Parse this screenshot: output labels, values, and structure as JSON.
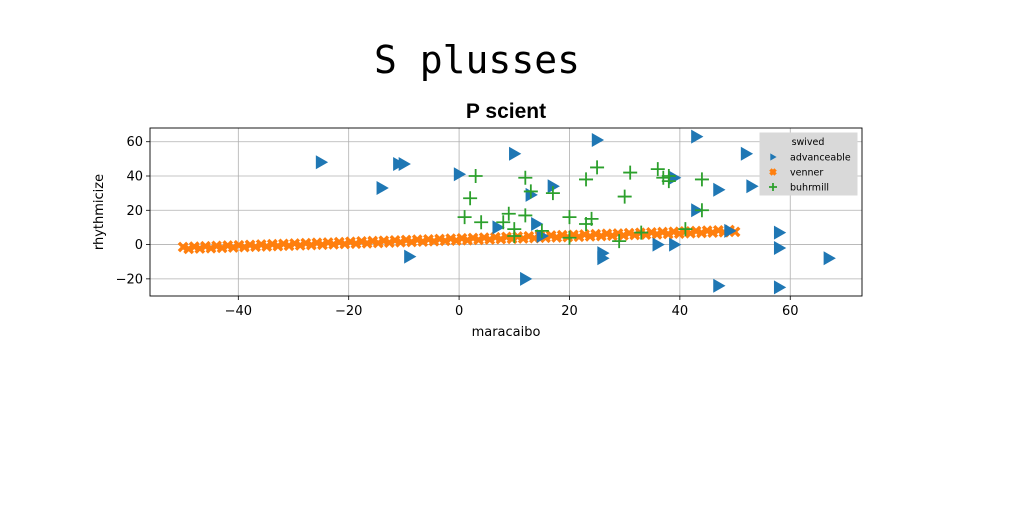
{
  "figure": {
    "suptitle": "S plusses"
  },
  "chart_data": {
    "type": "scatter",
    "title": "P scient",
    "xlabel": "maracaibo",
    "ylabel": "rhythmicize",
    "xlim": [
      -56,
      73
    ],
    "ylim": [
      -30,
      68
    ],
    "xticks": [
      -40,
      -20,
      0,
      20,
      40,
      60
    ],
    "yticks": [
      -20,
      0,
      20,
      40,
      60
    ],
    "xtick_labels": [
      "−40",
      "−20",
      "0",
      "20",
      "40",
      "60"
    ],
    "ytick_labels": [
      "−20",
      "0",
      "20",
      "40",
      "60"
    ],
    "grid": true,
    "legend": {
      "title": "swived",
      "placement": "upper right"
    },
    "series": [
      {
        "name": "advanceable",
        "marker": "triangle-right",
        "color": "#1f77b4",
        "points": [
          [
            -25,
            48
          ],
          [
            -11,
            47
          ],
          [
            -10,
            47
          ],
          [
            -14,
            33
          ],
          [
            -9,
            -7
          ],
          [
            0,
            41
          ],
          [
            10,
            53
          ],
          [
            12,
            -20
          ],
          [
            13,
            29
          ],
          [
            17,
            34
          ],
          [
            14,
            12
          ],
          [
            15,
            5
          ],
          [
            7,
            10
          ],
          [
            25,
            61
          ],
          [
            26,
            -5
          ],
          [
            26,
            -8
          ],
          [
            36,
            0
          ],
          [
            39,
            0
          ],
          [
            43,
            63
          ],
          [
            43,
            20
          ],
          [
            47,
            32
          ],
          [
            47,
            -24
          ],
          [
            39,
            39
          ],
          [
            52,
            53
          ],
          [
            53,
            34
          ],
          [
            58,
            7
          ],
          [
            58,
            -2
          ],
          [
            58,
            -25
          ],
          [
            67,
            -8
          ],
          [
            49,
            8
          ]
        ]
      },
      {
        "name": "venner",
        "marker": "x-filled",
        "color": "#ff7f0e",
        "trend": {
          "x_from": -50,
          "x_to": 50,
          "count": 100,
          "y_at_from": -2,
          "y_at_to": 8
        }
      },
      {
        "name": "buhrmill",
        "marker": "plus",
        "color": "#2ca02c",
        "points": [
          [
            2,
            27
          ],
          [
            3,
            40
          ],
          [
            1,
            16
          ],
          [
            4,
            13
          ],
          [
            8,
            13
          ],
          [
            9,
            18
          ],
          [
            10,
            5
          ],
          [
            12,
            39
          ],
          [
            12,
            17
          ],
          [
            13,
            31
          ],
          [
            15,
            8
          ],
          [
            17,
            30
          ],
          [
            20,
            16
          ],
          [
            20,
            4
          ],
          [
            23,
            38
          ],
          [
            23,
            12
          ],
          [
            24,
            15
          ],
          [
            25,
            45
          ],
          [
            29,
            2
          ],
          [
            30,
            28
          ],
          [
            31,
            42
          ],
          [
            33,
            7
          ],
          [
            36,
            44
          ],
          [
            37,
            39
          ],
          [
            38,
            37
          ],
          [
            38,
            40
          ],
          [
            41,
            9
          ],
          [
            44,
            38
          ],
          [
            44,
            20
          ],
          [
            10,
            9
          ]
        ]
      }
    ]
  }
}
